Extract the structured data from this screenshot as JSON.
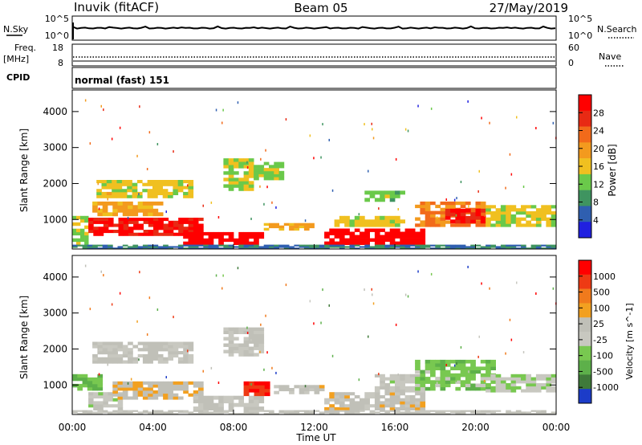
{
  "header": {
    "station": "Inuvik (fitACF)",
    "beam": "Beam 05",
    "date": "27/May/2019"
  },
  "strip_top": {
    "left_label": "N.Sky",
    "right_label": "N.Search",
    "left_ticks": [
      "10^5",
      "10^0"
    ],
    "right_ticks": [
      "10^5",
      "10^0"
    ]
  },
  "strip_freq": {
    "left_label_1": "Freq.",
    "left_label_2": "[MHz]",
    "right_label": "Nave",
    "left_ticks": [
      "18",
      "8"
    ],
    "right_ticks": [
      "60",
      "0"
    ]
  },
  "cpid": {
    "label": "CPID",
    "mode": "normal (fast) 151"
  },
  "colors": {
    "power": [
      "#2020e0",
      "#2f5fb0",
      "#3f9460",
      "#6ac94a",
      "#f0c020",
      "#f39a1e",
      "#f26a1a",
      "#e82a14",
      "#ff0000"
    ],
    "velocity": [
      "#1c3cc8",
      "#3f7a3a",
      "#5db04a",
      "#78c850",
      "#c8c8c0",
      "#c0c0b8",
      "#f2a020",
      "#f07a1c",
      "#ee3a14",
      "#ff0000"
    ]
  },
  "chart_data": [
    {
      "type": "heatmap",
      "name": "power",
      "xlabel": "",
      "ylabel": "Slant Range [km]",
      "xlim": [
        "00:00",
        "24:00"
      ],
      "ylim": [
        180,
        4600
      ],
      "yticks": [
        "1000",
        "2000",
        "3000",
        "4000"
      ],
      "colorbar": {
        "label": "Power [dB]",
        "ticks": [
          "28",
          "24",
          "20",
          "16",
          "12",
          "8",
          "4"
        ],
        "range": [
          0,
          30
        ]
      },
      "regions": [
        {
          "t0": 0.0,
          "t1": 0.8,
          "r0": 300,
          "r1": 1100,
          "value": 12
        },
        {
          "t0": 0.8,
          "t1": 6.5,
          "r0": 550,
          "r1": 1050,
          "value": 27
        },
        {
          "t0": 1.0,
          "t1": 4.5,
          "r0": 1100,
          "r1": 1500,
          "value": 17
        },
        {
          "t0": 1.2,
          "t1": 6.0,
          "r0": 1600,
          "r1": 2100,
          "value": 14
        },
        {
          "t0": 5.5,
          "t1": 9.5,
          "r0": 300,
          "r1": 650,
          "value": 29
        },
        {
          "t0": 7.5,
          "t1": 9.0,
          "r0": 1800,
          "r1": 2700,
          "value": 13
        },
        {
          "t0": 9.0,
          "t1": 10.5,
          "r0": 2100,
          "r1": 2600,
          "value": 12
        },
        {
          "t0": 9.5,
          "t1": 12.0,
          "r0": 700,
          "r1": 900,
          "value": 17
        },
        {
          "t0": 12.5,
          "t1": 17.5,
          "r0": 300,
          "r1": 750,
          "value": 29
        },
        {
          "t0": 13.0,
          "t1": 16.5,
          "r0": 800,
          "r1": 1100,
          "value": 14
        },
        {
          "t0": 14.5,
          "t1": 16.5,
          "r0": 1500,
          "r1": 1800,
          "value": 11
        },
        {
          "t0": 17.0,
          "t1": 20.5,
          "r0": 800,
          "r1": 1500,
          "value": 20
        },
        {
          "t0": 18.5,
          "t1": 20.5,
          "r0": 900,
          "r1": 1300,
          "value": 27
        },
        {
          "t0": 20.5,
          "t1": 24.0,
          "r0": 800,
          "r1": 1400,
          "value": 14
        },
        {
          "t0": 0.0,
          "t1": 24.0,
          "r0": 180,
          "r1": 300,
          "value": 6
        }
      ]
    },
    {
      "type": "heatmap",
      "name": "velocity",
      "xlabel": "Time UT",
      "ylabel": "Slant Range [km]",
      "xlim": [
        "00:00",
        "24:00"
      ],
      "ylim": [
        180,
        4600
      ],
      "xticks": [
        "00:00",
        "04:00",
        "08:00",
        "12:00",
        "16:00",
        "20:00",
        "00:00"
      ],
      "yticks": [
        "1000",
        "2000",
        "3000",
        "4000"
      ],
      "colorbar": {
        "label": "Velocity [m s^-1]",
        "ticks": [
          "1000",
          "500",
          "100",
          "25",
          "-25",
          "-100",
          "-500",
          "-1000"
        ],
        "range": [
          -1000,
          1000
        ]
      },
      "regions": [
        {
          "t0": 0.0,
          "t1": 1.5,
          "r0": 850,
          "r1": 1300,
          "value": -400
        },
        {
          "t0": 0.8,
          "t1": 2.5,
          "r0": 300,
          "r1": 800,
          "value": -120
        },
        {
          "t0": 2.0,
          "t1": 6.5,
          "r0": 600,
          "r1": 1100,
          "value": 120
        },
        {
          "t0": 1.0,
          "t1": 6.0,
          "r0": 1600,
          "r1": 2200,
          "value": 0
        },
        {
          "t0": 6.0,
          "t1": 9.5,
          "r0": 300,
          "r1": 700,
          "value": 0
        },
        {
          "t0": 7.5,
          "t1": 9.5,
          "r0": 1800,
          "r1": 2600,
          "value": 0
        },
        {
          "t0": 8.5,
          "t1": 9.8,
          "r0": 700,
          "r1": 1100,
          "value": 800
        },
        {
          "t0": 10.0,
          "t1": 12.5,
          "r0": 750,
          "r1": 1000,
          "value": 30
        },
        {
          "t0": 12.5,
          "t1": 17.5,
          "r0": 300,
          "r1": 800,
          "value": 60
        },
        {
          "t0": 15.0,
          "t1": 17.5,
          "r0": 800,
          "r1": 1300,
          "value": -100
        },
        {
          "t0": 17.0,
          "t1": 21.0,
          "r0": 850,
          "r1": 1700,
          "value": -350
        },
        {
          "t0": 20.5,
          "t1": 24.0,
          "r0": 800,
          "r1": 1300,
          "value": -200
        },
        {
          "t0": 0.0,
          "t1": 24.0,
          "r0": 180,
          "r1": 300,
          "value": 0
        }
      ]
    }
  ]
}
